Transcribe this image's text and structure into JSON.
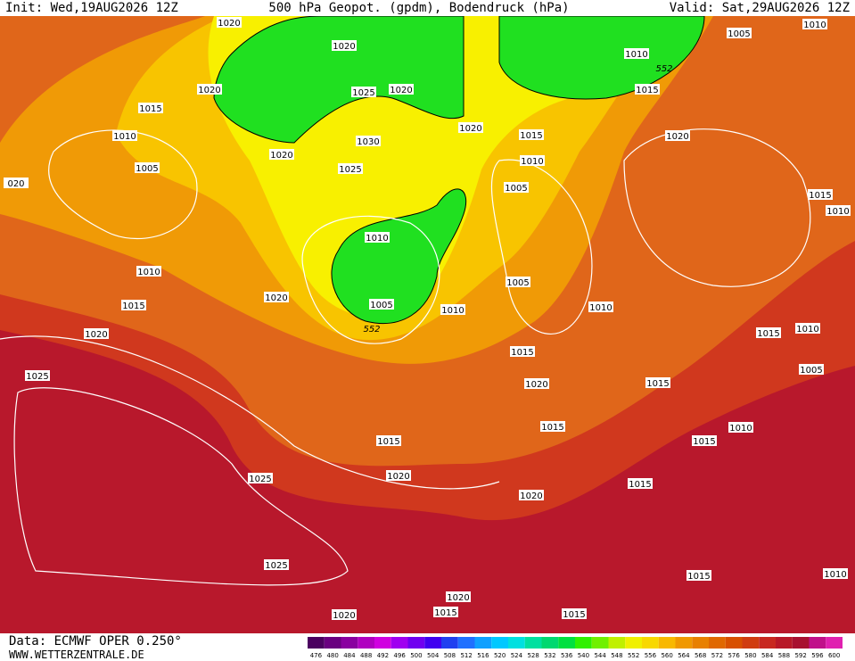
{
  "header": {
    "init": "Init: Wed,19AUG2026 12Z",
    "title": "500 hPa Geopot. (gpdm), Bodendruck (hPa)",
    "valid": "Valid: Sat,29AUG2026 12Z"
  },
  "footer": {
    "source": "Data: ECMWF OPER 0.250°",
    "site": "WWW.WETTERZENTRALE.DE"
  },
  "scale": {
    "labels": [
      476,
      480,
      484,
      488,
      492,
      496,
      500,
      504,
      508,
      512,
      516,
      520,
      524,
      528,
      532,
      536,
      540,
      544,
      548,
      552,
      556,
      560,
      564,
      568,
      572,
      576,
      580,
      584,
      588,
      592,
      596,
      600
    ],
    "colors": [
      "#4b0060",
      "#6a0080",
      "#8a00a0",
      "#b000c0",
      "#d000e0",
      "#a000f0",
      "#7000f0",
      "#4000f0",
      "#2040f0",
      "#2070ff",
      "#10a0ff",
      "#00c8ff",
      "#00e0e0",
      "#00e0a0",
      "#00d870",
      "#00e040",
      "#30f000",
      "#70f000",
      "#c0f000",
      "#f0f000",
      "#f8d800",
      "#f8b800",
      "#f09800",
      "#e88000",
      "#e06800",
      "#d85000",
      "#d03c10",
      "#c82820",
      "#b81828",
      "#a81030",
      "#c0108a",
      "#e020b0"
    ]
  },
  "isobars": [
    1020,
    1020,
    1020,
    1015,
    1010,
    1005,
    1025,
    1020,
    1030,
    1025,
    1020,
    1020,
    1015,
    1010,
    1005,
    1010,
    1010,
    1015,
    1020,
    1005,
    1010,
    1005,
    1010,
    1020,
    1025,
    1015,
    1020,
    1015,
    1015,
    1015,
    1015,
    1010,
    1025,
    1020,
    1015,
    1020,
    1025,
    1015,
    1020,
    1015,
    1015,
    1020,
    1005,
    1010,
    1010,
    1015,
    1020,
    1015,
    1010,
    1015,
    1010,
    1005,
    1010,
    "020"
  ],
  "geopot_labels": [
    552,
    552
  ]
}
